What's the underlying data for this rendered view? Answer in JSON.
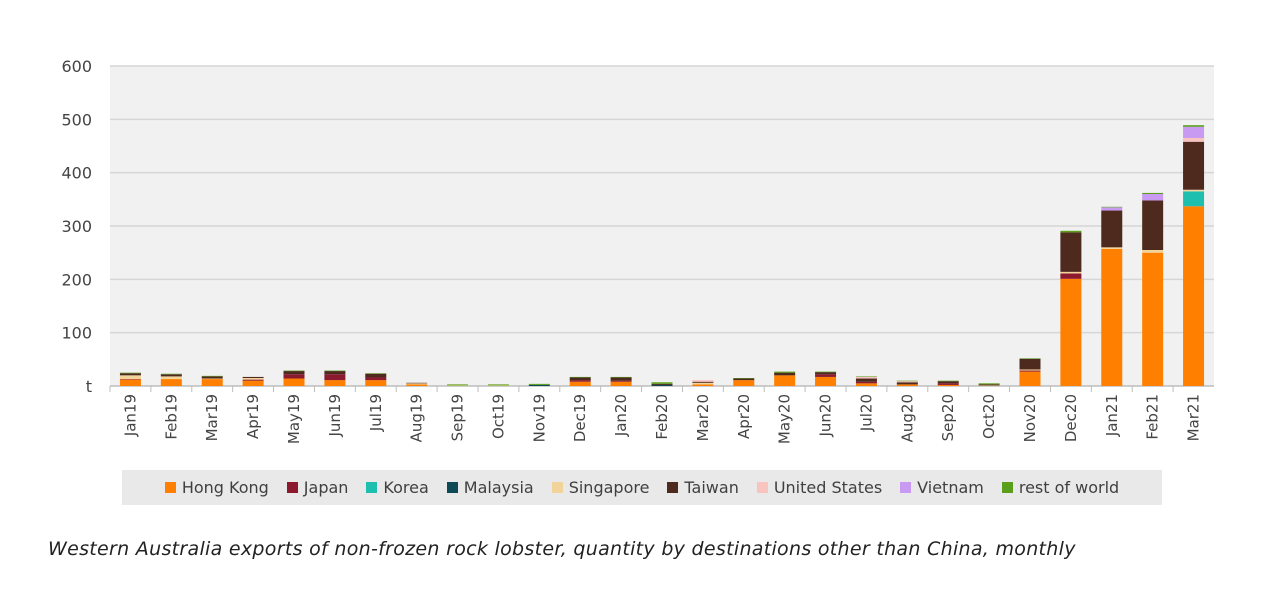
{
  "chart_data": {
    "type": "bar",
    "stacked": true,
    "title": "",
    "xlabel": "",
    "ylabel": "",
    "ylim": [
      0,
      600
    ],
    "yticks": [
      "t",
      "100",
      "200",
      "300",
      "400",
      "500",
      "600"
    ],
    "grid": true,
    "legend_position": "bottom",
    "categories": [
      "Jan19",
      "Feb19",
      "Mar19",
      "Apr19",
      "May19",
      "Jun19",
      "Jul19",
      "Aug19",
      "Sep19",
      "Oct19",
      "Nov19",
      "Dec19",
      "Jan20",
      "Feb20",
      "Mar20",
      "Apr20",
      "May20",
      "Jun20",
      "Jul20",
      "Aug20",
      "Sep20",
      "Oct20",
      "Nov20",
      "Dec20",
      "Jan21",
      "Feb21",
      "Mar21"
    ],
    "series": [
      {
        "name": "Hong Kong",
        "color": "#ff7f00",
        "values": [
          12,
          13,
          13,
          10,
          14,
          11,
          11,
          3,
          0,
          0,
          0,
          8,
          8,
          0,
          3,
          11,
          20,
          17,
          5,
          3,
          2,
          0,
          27,
          201,
          257,
          250,
          337
        ]
      },
      {
        "name": "Japan",
        "color": "#8b1a2f",
        "values": [
          1,
          0,
          0,
          2,
          8,
          11,
          5,
          0,
          0,
          0,
          0,
          3,
          2,
          0,
          0,
          0,
          0,
          5,
          3,
          0,
          3,
          0,
          2,
          10,
          0,
          0,
          0
        ]
      },
      {
        "name": "Korea",
        "color": "#1fbfb0",
        "values": [
          0,
          0,
          0,
          0,
          0,
          0,
          0,
          0,
          0,
          0,
          0,
          0,
          0,
          0,
          0,
          0,
          0,
          0,
          0,
          0,
          0,
          0,
          0,
          0,
          0,
          0,
          28
        ]
      },
      {
        "name": "Malaysia",
        "color": "#0d4a55",
        "values": [
          0,
          0,
          0,
          0,
          0,
          0,
          0,
          0,
          0,
          0,
          2,
          0,
          0,
          2,
          0,
          0,
          0,
          0,
          0,
          0,
          0,
          0,
          0,
          0,
          0,
          0,
          0
        ]
      },
      {
        "name": "Singapore",
        "color": "#f2d49b",
        "values": [
          7,
          5,
          1,
          3,
          0,
          0,
          0,
          2,
          1,
          1,
          0,
          0,
          0,
          0,
          3,
          0,
          0,
          0,
          0,
          0,
          0,
          1,
          2,
          3,
          3,
          5,
          3
        ]
      },
      {
        "name": "Taiwan",
        "color": "#4e2a1e",
        "values": [
          4,
          4,
          4,
          2,
          6,
          6,
          7,
          1,
          0,
          0,
          0,
          5,
          6,
          2,
          2,
          3,
          5,
          4,
          6,
          4,
          4,
          2,
          20,
          74,
          69,
          93,
          90
        ]
      },
      {
        "name": "United States",
        "color": "#f9c3c0",
        "values": [
          0,
          0,
          0,
          0,
          0,
          0,
          0,
          0,
          0,
          0,
          0,
          0,
          0,
          0,
          3,
          0,
          0,
          0,
          3,
          2,
          0,
          0,
          0,
          0,
          0,
          0,
          7
        ]
      },
      {
        "name": "Vietnam",
        "color": "#c89af2",
        "values": [
          0,
          0,
          0,
          0,
          0,
          0,
          0,
          0,
          0,
          0,
          0,
          0,
          0,
          0,
          0,
          0,
          0,
          0,
          0,
          0,
          0,
          0,
          0,
          0,
          6,
          12,
          21
        ]
      },
      {
        "name": "rest of world",
        "color": "#5a9e1c",
        "values": [
          1,
          1,
          1,
          0,
          1,
          1,
          1,
          0,
          2,
          2,
          2,
          1,
          1,
          3,
          0,
          1,
          2,
          1,
          1,
          1,
          1,
          2,
          1,
          3,
          1,
          2,
          3
        ]
      }
    ]
  },
  "caption": "Western Australia exports of non-frozen rock lobster, quantity by destinations other than China, monthly"
}
